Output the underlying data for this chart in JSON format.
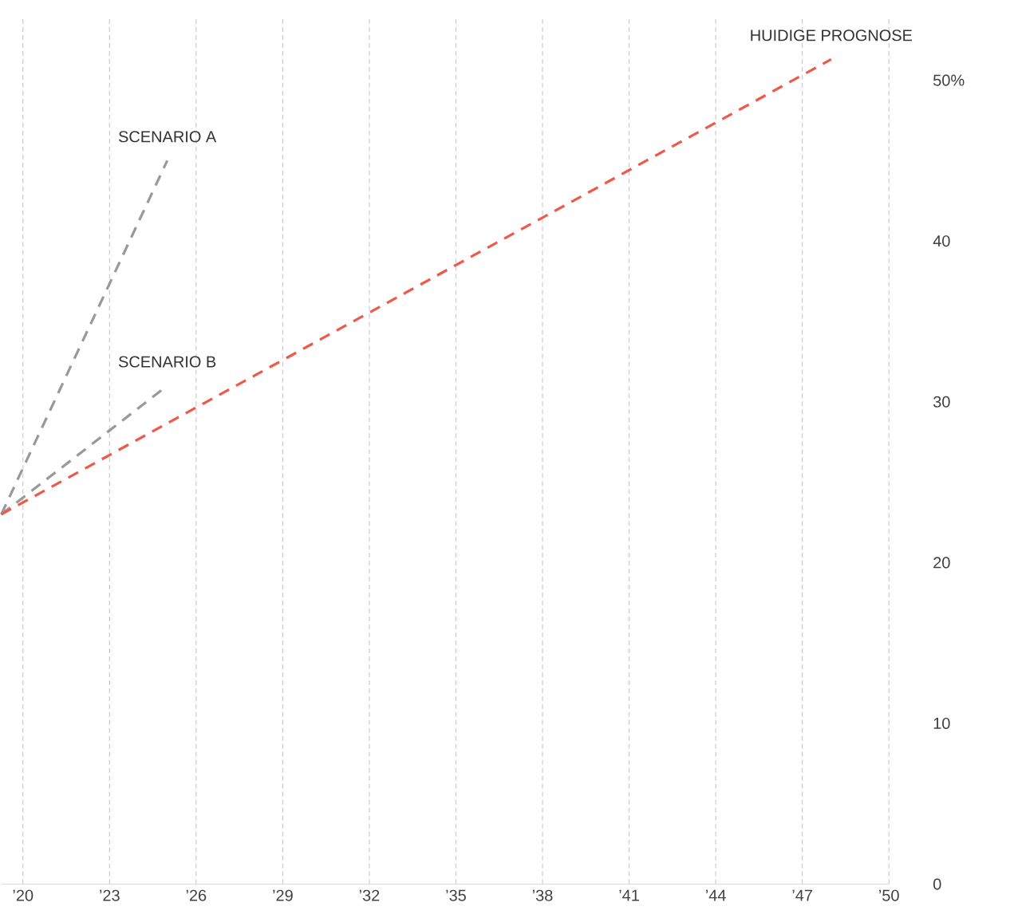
{
  "chart_data": {
    "type": "line",
    "line_style": "dashed",
    "marker": "none",
    "grid": "x",
    "legend": false,
    "series": [
      {
        "name": "SCENARIO A",
        "color": "#999999",
        "x": [
          2019.25,
          2025
        ],
        "values": [
          23,
          45
        ]
      },
      {
        "name": "SCENARIO B",
        "color": "#999999",
        "x": [
          2019.25,
          2025
        ],
        "values": [
          23,
          31
        ]
      },
      {
        "name": "HUIDIGE PROGNOSE",
        "color": "#f0584a",
        "x": [
          2019.25,
          2048
        ],
        "values": [
          23,
          51.3
        ]
      }
    ],
    "xlim": [
      2019.25,
      2050
    ],
    "xticks": [
      {
        "value": 2020,
        "label": "’20"
      },
      {
        "value": 2023,
        "label": "’23"
      },
      {
        "value": 2026,
        "label": "’26"
      },
      {
        "value": 2029,
        "label": "’29"
      },
      {
        "value": 2032,
        "label": "’32"
      },
      {
        "value": 2035,
        "label": "’35"
      },
      {
        "value": 2038,
        "label": "’38"
      },
      {
        "value": 2041,
        "label": "’41"
      },
      {
        "value": 2044,
        "label": "’44"
      },
      {
        "value": 2047,
        "label": "’47"
      },
      {
        "value": 2050,
        "label": "’50"
      }
    ],
    "ylim": [
      0,
      54
    ],
    "yticks": [
      0,
      10,
      20,
      30,
      40,
      {
        "value": 50,
        "label": "50%"
      }
    ]
  }
}
